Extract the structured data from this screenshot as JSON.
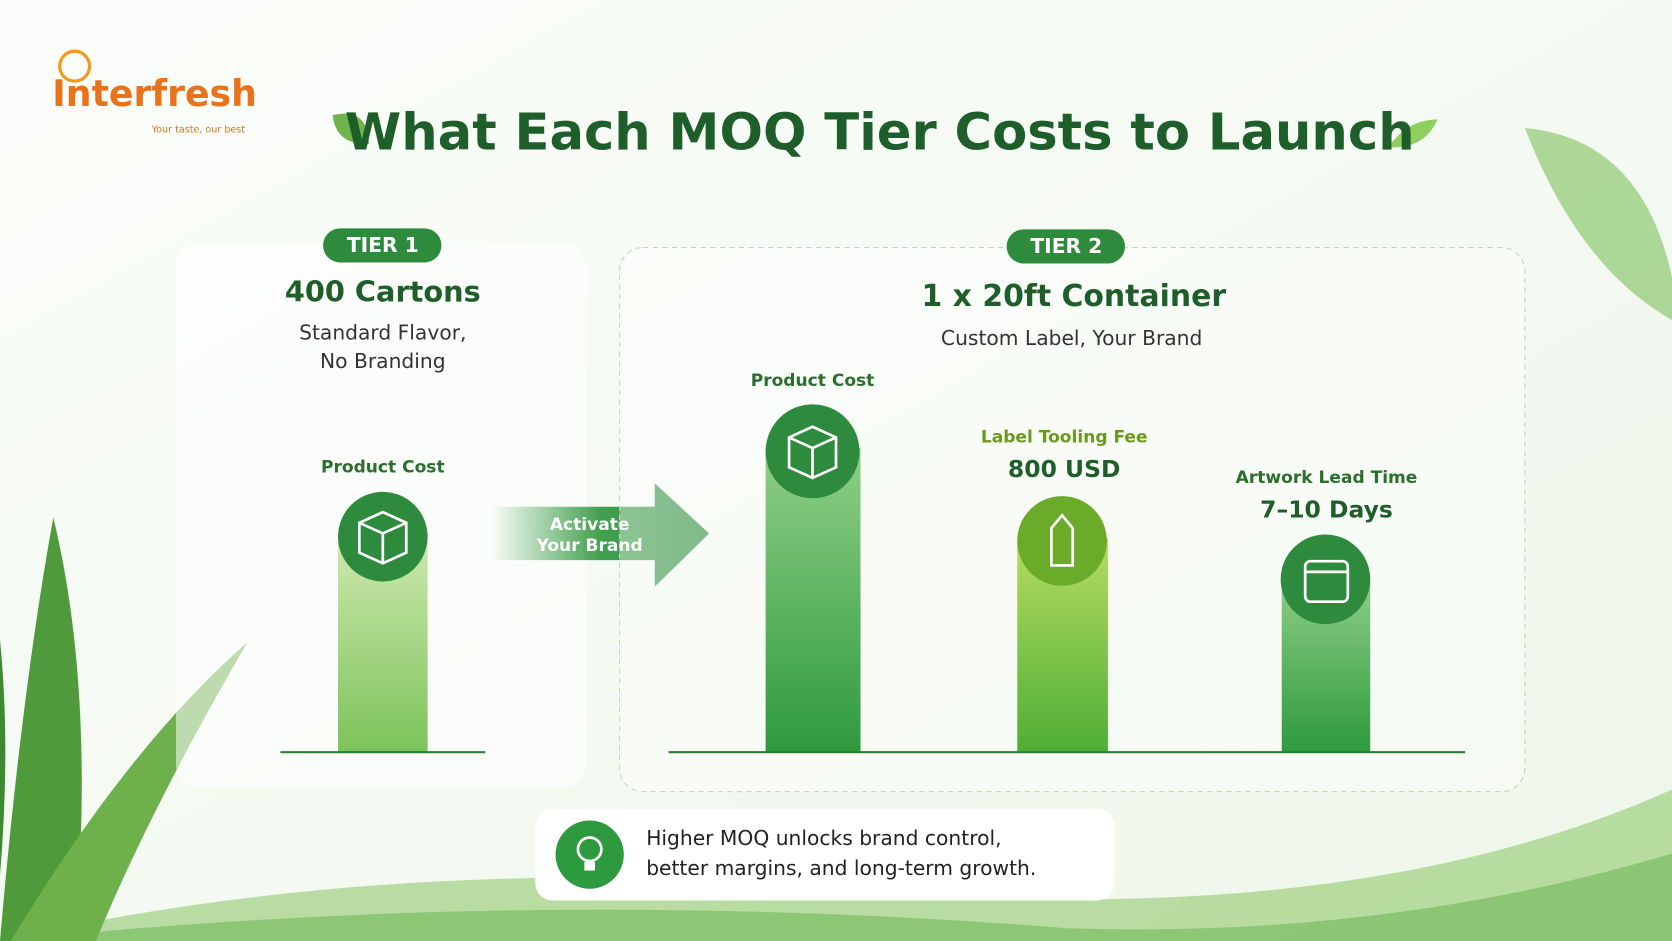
{
  "logo": {
    "name": "Interfresh",
    "tagline": "Your taste, our best"
  },
  "title": "What Each MOQ Tier Costs to Launch",
  "tier1": {
    "badge": "TIER 1",
    "title": "400 Cartons",
    "subtitle": [
      "Standard Flavor,",
      "No Branding"
    ],
    "bar_label": "Product Cost"
  },
  "arrow": [
    "Activate",
    "Your Brand"
  ],
  "tier2": {
    "badge": "TIER 2",
    "title": "1 x 20ft Container",
    "subtitle": "Custom Label, Your Brand",
    "bars": [
      {
        "label": "Product Cost"
      },
      {
        "label": "Label Tooling Fee",
        "value": "800 USD"
      },
      {
        "label": "Artwork Lead Time",
        "value": "7–10 Days"
      }
    ]
  },
  "note": [
    "Higher MOQ unlocks brand control,",
    "better margins, and long-term growth."
  ]
}
